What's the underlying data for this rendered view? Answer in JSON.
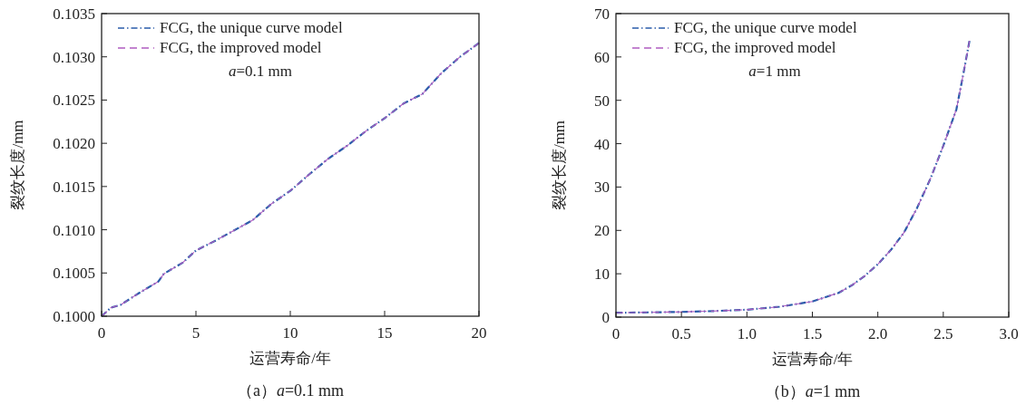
{
  "chart_data": [
    {
      "type": "line",
      "xlabel": "运营寿命/年",
      "ylabel": "裂纹长度/mm",
      "legend": "top left",
      "grid": false,
      "x": [
        0,
        0.5,
        1,
        2,
        3,
        3.3,
        4.3,
        5,
        6,
        7,
        8,
        9,
        10,
        11,
        12,
        13,
        14,
        15,
        16,
        17,
        18,
        19,
        20
      ],
      "xlim": [
        0,
        20
      ],
      "xticks": [
        0,
        5,
        10,
        15,
        20
      ],
      "ylim": [
        0.1,
        0.1035
      ],
      "yticks": [
        {
          "value": 0.1,
          "label": "0.1000"
        },
        {
          "value": 0.1005,
          "label": "0.1005"
        },
        {
          "value": 0.101,
          "label": "0.1010"
        },
        {
          "value": 0.1015,
          "label": "0.1015"
        },
        {
          "value": 0.102,
          "label": "0.1020"
        },
        {
          "value": 0.1025,
          "label": "0.1025"
        },
        {
          "value": 0.103,
          "label": "0.1030"
        },
        {
          "value": 0.1035,
          "label": "0.1035"
        }
      ],
      "series": [
        {
          "name": "FCG, the unique curve model",
          "color": "#2a5caa",
          "line_style": "dashdot",
          "values": [
            0.1,
            0.1001,
            0.10013,
            0.10027,
            0.1004,
            0.10049,
            0.10062,
            0.10076,
            0.10087,
            0.10099,
            0.10111,
            0.1013,
            0.10145,
            0.10164,
            0.10182,
            0.10197,
            0.10214,
            0.10229,
            0.10246,
            0.10257,
            0.10281,
            0.103,
            0.10316
          ]
        },
        {
          "name": "FCG, the improved model",
          "color": "#b05cc0",
          "line_style": "dashed",
          "values": [
            0.1,
            0.1001,
            0.10013,
            0.10027,
            0.1004,
            0.10049,
            0.10062,
            0.10076,
            0.10087,
            0.10099,
            0.10111,
            0.1013,
            0.10145,
            0.10164,
            0.10182,
            0.10197,
            0.10214,
            0.10229,
            0.10246,
            0.10257,
            0.10281,
            0.103,
            0.10316
          ]
        }
      ],
      "annotations": [
        "*a*=0.1 mm",
        "（a）*a*=0.1 mm"
      ]
    },
    {
      "type": "line",
      "xlabel": "运营寿命/年",
      "ylabel": "裂纹长度/mm",
      "legend": "top left",
      "grid": false,
      "x": [
        0,
        0.5,
        0.75,
        1,
        1.25,
        1.5,
        1.7,
        1.8,
        1.9,
        2,
        2.1,
        2.2,
        2.3,
        2.4,
        2.5,
        2.6,
        2.65,
        2.7
      ],
      "xlim": [
        0,
        3
      ],
      "xticks": [
        0,
        0.5,
        {
          "value": 1,
          "label": "1.0"
        },
        1.5,
        {
          "value": 2,
          "label": "2.0"
        },
        2.5,
        {
          "value": 3,
          "label": "3.0"
        }
      ],
      "ylim": [
        0,
        70
      ],
      "yticks": [
        0,
        10,
        20,
        30,
        40,
        50,
        60,
        70
      ],
      "series": [
        {
          "name": "FCG, the unique curve model",
          "color": "#2a5caa",
          "line_style": "dashdot",
          "values": [
            1,
            1.2,
            1.4,
            1.7,
            2.4,
            3.6,
            5.6,
            7.3,
            9.5,
            12.2,
            15.5,
            19.5,
            25.2,
            31.8,
            39.5,
            47.9,
            55.6,
            63.7
          ]
        },
        {
          "name": "FCG, the improved model",
          "color": "#b05cc0",
          "line_style": "dashed",
          "values": [
            1,
            1.2,
            1.4,
            1.7,
            2.4,
            3.6,
            5.6,
            7.3,
            9.5,
            12.2,
            15.5,
            19.5,
            25.2,
            31.8,
            39.5,
            47.9,
            55.6,
            63.7
          ]
        }
      ],
      "annotations": [
        "*a*=1 mm",
        "（b）*a*=1 mm"
      ]
    }
  ]
}
